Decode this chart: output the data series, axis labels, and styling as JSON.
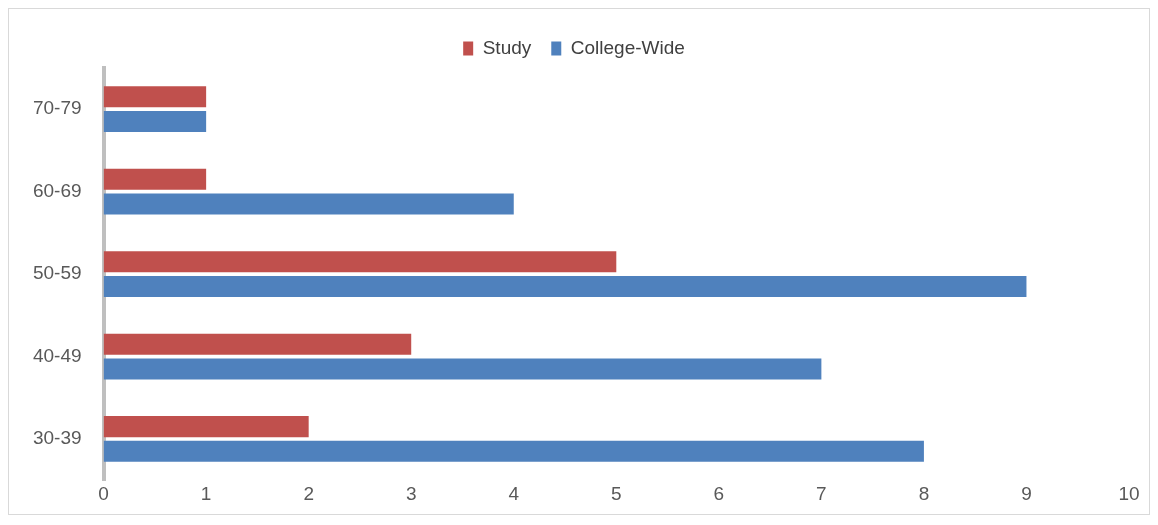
{
  "chart_data": {
    "type": "bar",
    "orientation": "horizontal",
    "categories": [
      "70-79",
      "60-69",
      "50-59",
      "40-49",
      "30-39"
    ],
    "series": [
      {
        "name": "Study",
        "color": "#c0504d",
        "values": [
          1,
          1,
          5,
          3,
          2
        ]
      },
      {
        "name": "College-Wide",
        "color": "#4f81bd",
        "values": [
          1,
          4,
          9,
          7,
          8
        ]
      }
    ],
    "xlim": [
      0,
      10
    ],
    "xticks": [
      0,
      1,
      2,
      3,
      4,
      5,
      6,
      7,
      8,
      9,
      10
    ],
    "grid": false,
    "legend": "top"
  }
}
